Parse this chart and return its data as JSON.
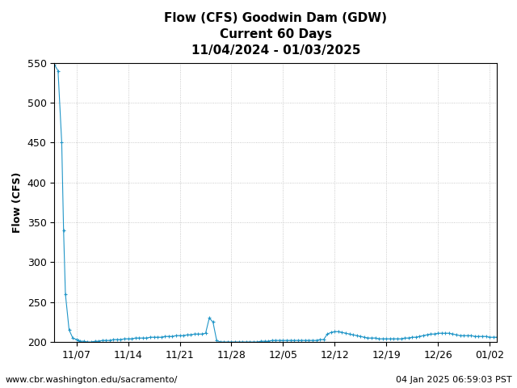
{
  "title_line1": "Flow (CFS) Goodwin Dam (GDW)",
  "title_line2": "Current 60 Days",
  "title_line3": "11/04/2024 - 01/03/2025",
  "ylabel": "Flow (CFS)",
  "ylim": [
    200,
    550
  ],
  "yticks": [
    200,
    250,
    300,
    350,
    400,
    450,
    500,
    550
  ],
  "footer_left": "www.cbr.washington.edu/sacramento/",
  "footer_right": "04 Jan 2025 06:59:03 PST",
  "line_color": "#2196c8",
  "marker_color": "#2196c8",
  "background_color": "#ffffff",
  "grid_color": "#aaaaaa",
  "title_fontsize": 11,
  "axis_fontsize": 9,
  "footer_fontsize": 8,
  "data": {
    "dates": [
      "2024-11-04",
      "2024-11-04",
      "2024-11-05",
      "2024-11-05",
      "2024-11-05",
      "2024-11-06",
      "2024-11-06",
      "2024-11-07",
      "2024-11-07",
      "2024-11-07",
      "2024-11-08",
      "2024-11-08",
      "2024-11-09",
      "2024-11-09",
      "2024-11-10",
      "2024-11-10",
      "2024-11-11",
      "2024-11-11",
      "2024-11-12",
      "2024-11-12",
      "2024-11-13",
      "2024-11-13",
      "2024-11-14",
      "2024-11-14",
      "2024-11-15",
      "2024-11-15",
      "2024-11-16",
      "2024-11-16",
      "2024-11-17",
      "2024-11-17",
      "2024-11-18",
      "2024-11-18",
      "2024-11-19",
      "2024-11-19",
      "2024-11-20",
      "2024-11-20",
      "2024-11-21",
      "2024-11-21",
      "2024-11-22",
      "2024-11-22",
      "2024-11-23",
      "2024-11-23",
      "2024-11-24",
      "2024-11-24",
      "2024-11-25",
      "2024-11-25",
      "2024-11-26",
      "2024-11-26",
      "2024-11-27",
      "2024-11-27",
      "2024-11-28",
      "2024-11-28",
      "2024-11-29",
      "2024-11-29",
      "2024-11-30",
      "2024-11-30",
      "2024-12-01",
      "2024-12-01",
      "2024-12-02",
      "2024-12-02",
      "2024-12-03",
      "2024-12-03",
      "2024-12-04",
      "2024-12-04",
      "2024-12-05",
      "2024-12-05",
      "2024-12-06",
      "2024-12-06",
      "2024-12-07",
      "2024-12-07",
      "2024-12-08",
      "2024-12-08",
      "2024-12-09",
      "2024-12-09",
      "2024-12-10",
      "2024-12-10",
      "2024-12-11",
      "2024-12-11",
      "2024-12-12",
      "2024-12-12",
      "2024-12-13",
      "2024-12-13",
      "2024-12-14",
      "2024-12-14",
      "2024-12-15",
      "2024-12-15",
      "2024-12-16",
      "2024-12-16",
      "2024-12-17",
      "2024-12-17",
      "2024-12-18",
      "2024-12-18",
      "2024-12-19",
      "2024-12-19",
      "2024-12-20",
      "2024-12-20",
      "2024-12-21",
      "2024-12-21",
      "2024-12-22",
      "2024-12-22",
      "2024-12-23",
      "2024-12-23",
      "2024-12-24",
      "2024-12-24",
      "2024-12-25",
      "2024-12-25",
      "2024-12-26",
      "2024-12-26",
      "2024-12-27",
      "2024-12-27",
      "2024-12-28",
      "2024-12-28",
      "2024-12-29",
      "2024-12-29",
      "2024-12-30",
      "2024-12-30",
      "2024-12-31",
      "2024-12-31",
      "2025-01-01",
      "2025-01-01",
      "2025-01-02",
      "2025-01-02",
      "2025-01-03"
    ],
    "values": [
      548,
      540,
      450,
      340,
      260,
      215,
      205,
      203,
      202,
      201,
      201,
      200,
      200,
      201,
      201,
      202,
      202,
      202,
      203,
      203,
      203,
      204,
      204,
      204,
      205,
      205,
      205,
      205,
      206,
      206,
      206,
      206,
      207,
      207,
      207,
      208,
      208,
      208,
      209,
      209,
      210,
      210,
      210,
      211,
      230,
      225,
      202,
      200,
      200,
      200,
      200,
      200,
      200,
      200,
      200,
      200,
      200,
      200,
      201,
      201,
      201,
      202,
      202,
      202,
      202,
      202,
      202,
      202,
      202,
      202,
      202,
      202,
      202,
      202,
      203,
      203,
      210,
      212,
      213,
      213,
      212,
      211,
      210,
      209,
      208,
      207,
      206,
      205,
      205,
      205,
      204,
      204,
      204,
      204,
      204,
      204,
      204,
      205,
      205,
      206,
      206,
      207,
      208,
      209,
      210,
      210,
      211,
      211,
      211,
      211,
      210,
      209,
      208,
      208,
      208,
      208,
      207,
      207,
      207,
      207,
      206,
      206,
      206
    ]
  }
}
